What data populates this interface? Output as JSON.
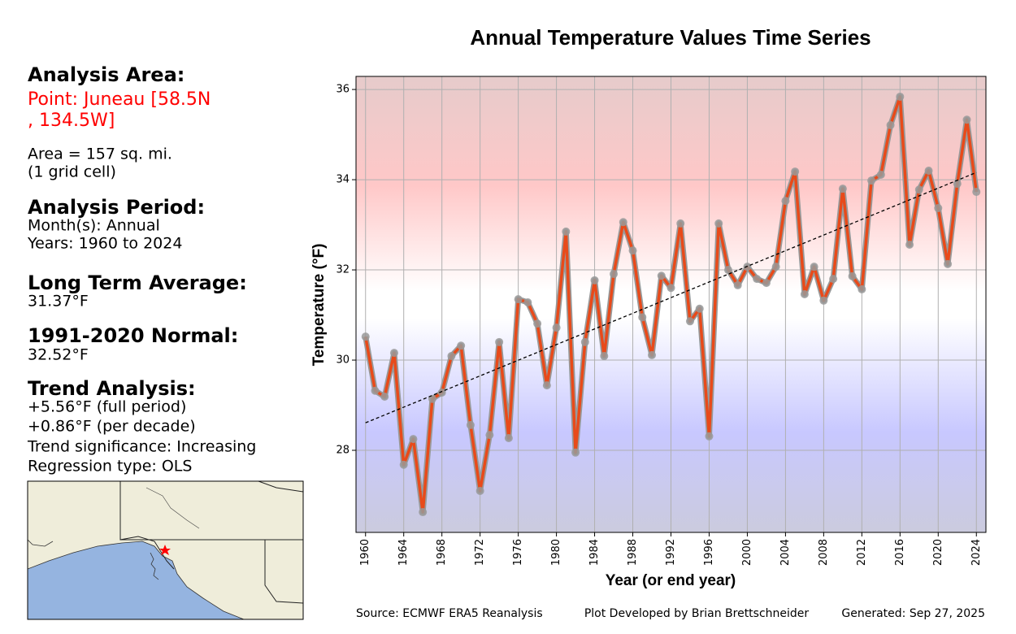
{
  "chart_data": {
    "type": "line",
    "title": "Annual Temperature Values Time Series",
    "x_label": "Year (or end year)",
    "y_label": "Temperature (°F)",
    "x": [
      1960,
      1961,
      1962,
      1963,
      1964,
      1965,
      1966,
      1967,
      1968,
      1969,
      1970,
      1971,
      1972,
      1973,
      1974,
      1975,
      1976,
      1977,
      1978,
      1979,
      1980,
      1981,
      1982,
      1983,
      1984,
      1985,
      1986,
      1987,
      1988,
      1989,
      1990,
      1991,
      1992,
      1993,
      1994,
      1995,
      1996,
      1997,
      1998,
      1999,
      2000,
      2001,
      2002,
      2003,
      2004,
      2005,
      2006,
      2007,
      2008,
      2009,
      2010,
      2011,
      2012,
      2013,
      2014,
      2015,
      2016,
      2017,
      2018,
      2019,
      2020,
      2021,
      2022,
      2023,
      2024
    ],
    "series": [
      {
        "name": "Temperature",
        "color": "#e84a1a",
        "marker_color": "#999999",
        "values": [
          30.52,
          29.32,
          29.19,
          30.16,
          27.68,
          28.25,
          26.63,
          29.14,
          29.28,
          30.09,
          30.32,
          28.56,
          27.1,
          28.34,
          30.4,
          28.27,
          31.35,
          31.28,
          30.81,
          29.44,
          30.72,
          32.85,
          27.95,
          30.4,
          31.77,
          30.09,
          31.91,
          33.06,
          32.43,
          30.95,
          30.11,
          31.87,
          31.6,
          33.03,
          30.86,
          31.14,
          28.31,
          33.03,
          32.0,
          31.66,
          32.07,
          31.8,
          31.71,
          32.07,
          33.53,
          34.18,
          31.46,
          32.07,
          31.32,
          31.8,
          33.8,
          31.86,
          31.57,
          33.98,
          34.11,
          35.21,
          35.84,
          32.56,
          33.78,
          34.2,
          33.37,
          32.13,
          33.91,
          35.33,
          33.73
        ]
      }
    ],
    "trend_line": {
      "x": [
        1960,
        2024
      ],
      "values": [
        28.61,
        34.16
      ],
      "color": "#000000"
    },
    "xlim": [
      1959,
      2025
    ],
    "ylim": [
      26.18,
      36.29
    ],
    "xticks": [
      1960,
      1964,
      1968,
      1972,
      1976,
      1980,
      1984,
      1988,
      1992,
      1996,
      2000,
      2004,
      2008,
      2012,
      2016,
      2020,
      2024
    ],
    "yticks": [
      28,
      30,
      32,
      34,
      36
    ],
    "grid": true
  },
  "panel": {
    "area_heading": "Analysis Area:",
    "point_lines": [
      "Point: Juneau [58.5N",
      ", 134.5W]"
    ],
    "area_lines": [
      "Area = 157 sq. mi.",
      "(1 grid cell)"
    ],
    "period_heading": "Analysis Period:",
    "period_lines": [
      "Month(s): Annual",
      "Years: 1960 to 2024"
    ],
    "average_heading": "Long Term Average:",
    "average_value": "31.37°F",
    "normal_heading": "1991-2020 Normal:",
    "normal_value": "32.52°F",
    "trend_heading": "Trend Analysis:",
    "trend_lines": [
      "+5.56°F (full period)",
      "+0.86°F (per decade)",
      "Trend significance: Increasing",
      "Regression type: OLS"
    ]
  },
  "footer": {
    "source": "Source: ECMWF ERA5 Reanalysis",
    "developer": "Plot Developed by Brian Brettschneider",
    "generated": "Generated: Sep 27, 2025"
  }
}
